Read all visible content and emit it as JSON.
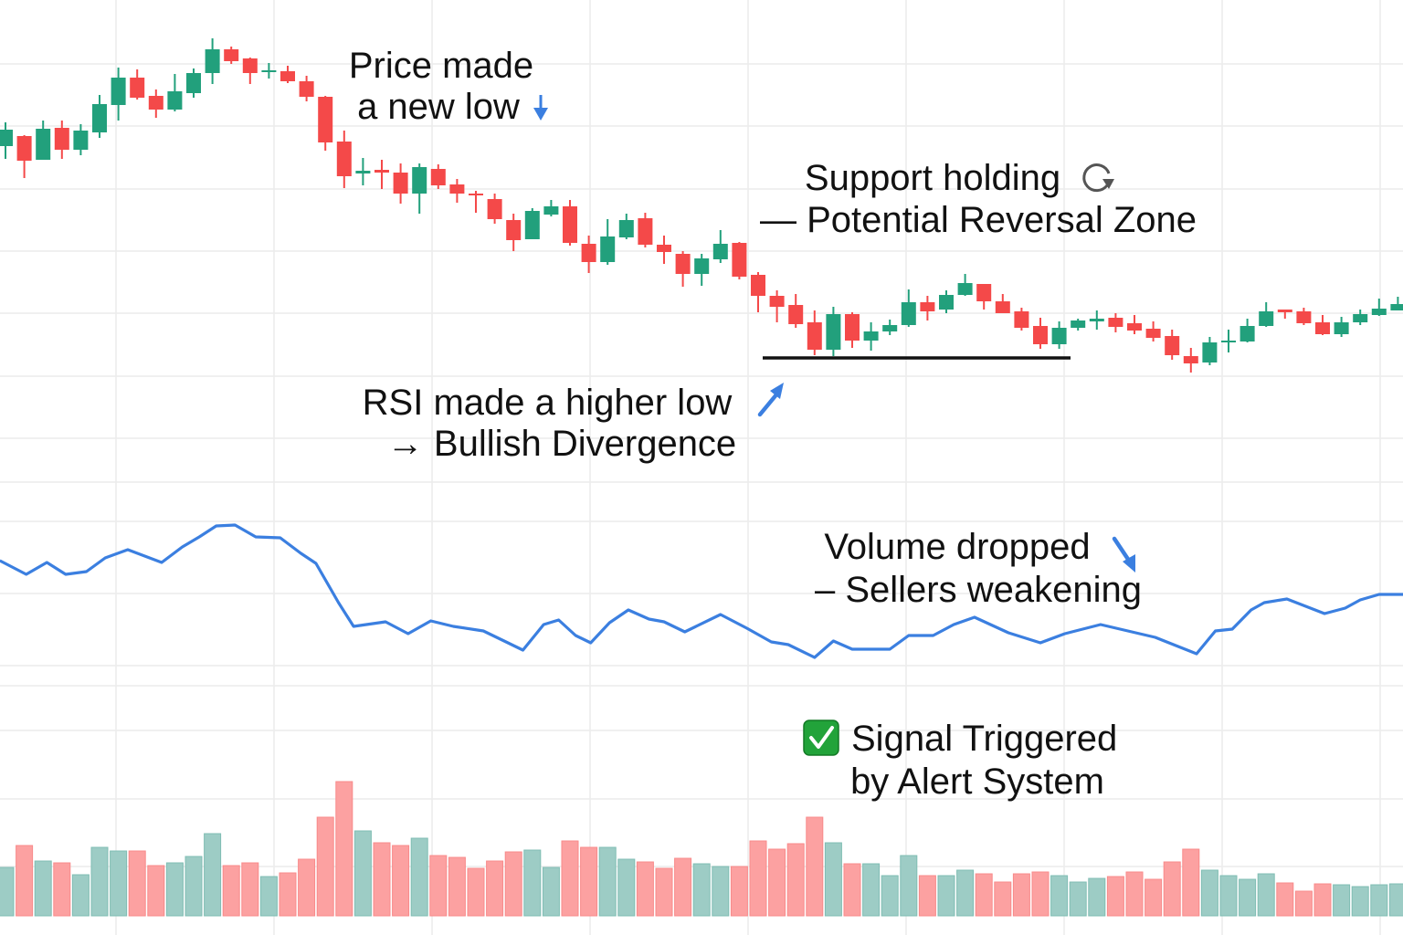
{
  "chart_data": [
    {
      "type": "candlestick",
      "panel": "price",
      "grid": true,
      "colors": {
        "up": "#22a07c",
        "down": "#f44949"
      },
      "ohlc_fields": [
        "open",
        "high",
        "low",
        "close"
      ],
      "candles": [
        [
          340,
          366,
          326,
          358
        ],
        [
          351,
          352,
          305,
          324
        ],
        [
          325,
          368,
          325,
          359
        ],
        [
          360,
          368,
          326,
          336
        ],
        [
          336,
          364,
          330,
          357
        ],
        [
          355,
          396,
          349,
          386
        ],
        [
          385,
          426,
          368,
          415
        ],
        [
          415,
          424,
          391,
          393
        ],
        [
          395,
          402,
          371,
          380
        ],
        [
          380,
          419,
          378,
          400
        ],
        [
          398,
          425,
          393,
          420
        ],
        [
          420,
          458,
          408,
          446
        ],
        [
          446,
          449,
          430,
          433
        ],
        [
          436,
          437,
          408,
          420
        ],
        [
          421,
          431,
          414,
          423
        ],
        [
          422,
          428,
          409,
          411
        ],
        [
          411,
          417,
          389,
          394
        ],
        [
          394,
          395,
          335,
          344
        ],
        [
          345,
          357,
          294,
          307
        ],
        [
          310,
          327,
          297,
          313
        ],
        [
          314,
          325,
          293,
          311
        ],
        [
          311,
          321,
          277,
          288
        ],
        [
          288,
          321,
          266,
          317
        ],
        [
          315,
          320,
          293,
          297
        ],
        [
          298,
          304,
          278,
          288
        ],
        [
          288,
          291,
          267,
          286
        ],
        [
          282,
          288,
          255,
          260
        ],
        [
          259,
          266,
          225,
          237
        ],
        [
          238,
          272,
          238,
          269
        ],
        [
          265,
          281,
          263,
          274
        ],
        [
          274,
          281,
          231,
          234
        ],
        [
          233,
          242,
          201,
          213
        ],
        [
          213,
          260,
          210,
          241
        ],
        [
          240,
          266,
          238,
          259
        ],
        [
          261,
          267,
          229,
          232
        ],
        [
          232,
          242,
          211,
          224
        ],
        [
          222,
          225,
          186,
          200
        ],
        [
          200,
          222,
          187,
          217
        ],
        [
          216,
          248,
          212,
          233
        ],
        [
          234,
          235,
          194,
          197
        ],
        [
          199,
          202,
          158,
          176
        ],
        [
          176,
          182,
          147,
          164
        ],
        [
          166,
          178,
          141,
          145
        ],
        [
          147,
          160,
          111,
          117
        ],
        [
          117,
          164,
          110,
          156
        ],
        [
          156,
          158,
          119,
          127
        ],
        [
          127,
          147,
          116,
          137
        ],
        [
          137,
          150,
          133,
          144
        ],
        [
          144,
          183,
          142,
          169
        ],
        [
          169,
          176,
          149,
          159
        ],
        [
          161,
          182,
          157,
          177
        ],
        [
          177,
          200,
          176,
          190
        ],
        [
          189,
          189,
          161,
          170
        ],
        [
          170,
          178,
          157,
          157
        ],
        [
          159,
          163,
          138,
          141
        ],
        [
          143,
          152,
          118,
          123
        ],
        [
          123,
          148,
          118,
          141
        ],
        [
          141,
          151,
          138,
          149
        ],
        [
          148,
          160,
          139,
          151
        ],
        [
          152,
          157,
          136,
          142
        ],
        [
          146,
          155,
          134,
          138
        ],
        [
          140,
          148,
          126,
          130
        ],
        [
          132,
          139,
          106,
          111
        ],
        [
          110,
          119,
          92,
          102
        ],
        [
          103,
          131,
          100,
          125
        ],
        [
          126,
          139,
          114,
          127
        ],
        [
          126,
          151,
          125,
          143
        ],
        [
          143,
          169,
          142,
          159
        ],
        [
          161,
          161,
          151,
          158
        ],
        [
          159,
          163,
          144,
          146
        ],
        [
          147,
          155,
          133,
          134
        ],
        [
          134,
          153,
          131,
          147
        ],
        [
          147,
          161,
          144,
          156
        ],
        [
          155,
          173,
          154,
          162
        ],
        [
          160,
          175,
          160,
          167
        ]
      ],
      "support_level": 108,
      "support_line_color": "#111111",
      "annotations": [
        {
          "lines": [
            "Price made",
            "a new low"
          ],
          "icon": "arrow-down-icon",
          "icon_color": "#3b7fe0"
        },
        {
          "lines": [
            "Support holding",
            "— Potential Reversal Zone"
          ],
          "icon": "refresh-icon",
          "icon_color": "#555555"
        },
        {
          "lines": [
            "RSI made a higher low",
            "→ Bullish Divergence"
          ],
          "icon": "arrow-up-right-icon",
          "icon_color": "#3b7fe0"
        }
      ]
    },
    {
      "type": "line",
      "panel": "indicator",
      "grid": true,
      "color": "#3b7fe0",
      "points": [
        [
          -0.3,
          68
        ],
        [
          1.1,
          60.5
        ],
        [
          2.2,
          67
        ],
        [
          3.2,
          60.5
        ],
        [
          4.3,
          62
        ],
        [
          5.3,
          69.5
        ],
        [
          6.5,
          74
        ],
        [
          8.3,
          67
        ],
        [
          9.4,
          75.5
        ],
        [
          10.3,
          81
        ],
        [
          11.2,
          87
        ],
        [
          12.2,
          87.5
        ],
        [
          13.3,
          81
        ],
        [
          14.6,
          80.5
        ],
        [
          15.7,
          72
        ],
        [
          16.5,
          66.5
        ],
        [
          17.7,
          45
        ],
        [
          18.5,
          32
        ],
        [
          20.2,
          34.5
        ],
        [
          21.4,
          28
        ],
        [
          22.6,
          35
        ],
        [
          23.8,
          32
        ],
        [
          25.4,
          29.5
        ],
        [
          26.6,
          23.5
        ],
        [
          27.5,
          19
        ],
        [
          28.6,
          33
        ],
        [
          29.4,
          35.5
        ],
        [
          30.3,
          27
        ],
        [
          31.1,
          23
        ],
        [
          32.1,
          34
        ],
        [
          33.1,
          41
        ],
        [
          34.2,
          36
        ],
        [
          35.0,
          34.5
        ],
        [
          36.1,
          29
        ],
        [
          38.0,
          38.5
        ],
        [
          39.4,
          31
        ],
        [
          40.7,
          23.5
        ],
        [
          41.6,
          22
        ],
        [
          43.0,
          15
        ],
        [
          44.0,
          24
        ],
        [
          45.0,
          19.5
        ],
        [
          47.0,
          19.5
        ],
        [
          48.0,
          27
        ],
        [
          49.3,
          27
        ],
        [
          50.4,
          33
        ],
        [
          51.5,
          37
        ],
        [
          53.3,
          28.5
        ],
        [
          55.0,
          23
        ],
        [
          56.3,
          28
        ],
        [
          58.2,
          33
        ],
        [
          61.1,
          26
        ],
        [
          63.3,
          17
        ],
        [
          64.3,
          29.5
        ],
        [
          65.2,
          30.5
        ],
        [
          66.2,
          41
        ],
        [
          66.9,
          45
        ],
        [
          68.1,
          47
        ],
        [
          70.1,
          39
        ],
        [
          71.2,
          42
        ],
        [
          72.0,
          46.5
        ],
        [
          73.0,
          49.5
        ],
        [
          74.3,
          49.5
        ]
      ],
      "annotations": [
        {
          "lines": [
            "Volume dropped",
            "– Sellers weakening"
          ],
          "icon": "arrow-down-right-icon",
          "icon_color": "#3b7fe0"
        }
      ]
    },
    {
      "type": "bar",
      "panel": "volume",
      "grid": true,
      "colors": {
        "up": "#9dccc5",
        "down": "#fca1a1"
      },
      "bars": [
        [
          53,
          "up"
        ],
        [
          77,
          "down"
        ],
        [
          60,
          "up"
        ],
        [
          58,
          "down"
        ],
        [
          45,
          "up"
        ],
        [
          75,
          "up"
        ],
        [
          71,
          "up"
        ],
        [
          71,
          "down"
        ],
        [
          55,
          "down"
        ],
        [
          58,
          "up"
        ],
        [
          65,
          "up"
        ],
        [
          90,
          "up"
        ],
        [
          55,
          "down"
        ],
        [
          58,
          "down"
        ],
        [
          43,
          "up"
        ],
        [
          47,
          "down"
        ],
        [
          62,
          "down"
        ],
        [
          108,
          "down"
        ],
        [
          147,
          "down"
        ],
        [
          93,
          "up"
        ],
        [
          80,
          "down"
        ],
        [
          77,
          "down"
        ],
        [
          85,
          "up"
        ],
        [
          66,
          "down"
        ],
        [
          64,
          "down"
        ],
        [
          52,
          "down"
        ],
        [
          60,
          "down"
        ],
        [
          70,
          "down"
        ],
        [
          72,
          "up"
        ],
        [
          53,
          "up"
        ],
        [
          82,
          "down"
        ],
        [
          75,
          "down"
        ],
        [
          75,
          "up"
        ],
        [
          62,
          "up"
        ],
        [
          59,
          "down"
        ],
        [
          52,
          "down"
        ],
        [
          63,
          "down"
        ],
        [
          57,
          "up"
        ],
        [
          54,
          "up"
        ],
        [
          54,
          "down"
        ],
        [
          82,
          "down"
        ],
        [
          73,
          "down"
        ],
        [
          79,
          "down"
        ],
        [
          108,
          "down"
        ],
        [
          80,
          "up"
        ],
        [
          57,
          "down"
        ],
        [
          57,
          "up"
        ],
        [
          44,
          "up"
        ],
        [
          66,
          "up"
        ],
        [
          44,
          "down"
        ],
        [
          44,
          "up"
        ],
        [
          50,
          "up"
        ],
        [
          46,
          "down"
        ],
        [
          37,
          "down"
        ],
        [
          46,
          "down"
        ],
        [
          48,
          "down"
        ],
        [
          44,
          "up"
        ],
        [
          37,
          "up"
        ],
        [
          41,
          "up"
        ],
        [
          43,
          "down"
        ],
        [
          48,
          "down"
        ],
        [
          40,
          "down"
        ],
        [
          59,
          "down"
        ],
        [
          73,
          "down"
        ],
        [
          50,
          "up"
        ],
        [
          44,
          "up"
        ],
        [
          40,
          "up"
        ],
        [
          46,
          "up"
        ],
        [
          36,
          "down"
        ],
        [
          27,
          "down"
        ],
        [
          35,
          "down"
        ],
        [
          34,
          "up"
        ],
        [
          32,
          "up"
        ],
        [
          34,
          "up"
        ],
        [
          35,
          "up"
        ]
      ],
      "annotations": [
        {
          "lines": [
            "Signal Triggered",
            "by Alert System"
          ],
          "icon": "check-box-icon",
          "icon_color": "#22a33a"
        }
      ]
    }
  ]
}
